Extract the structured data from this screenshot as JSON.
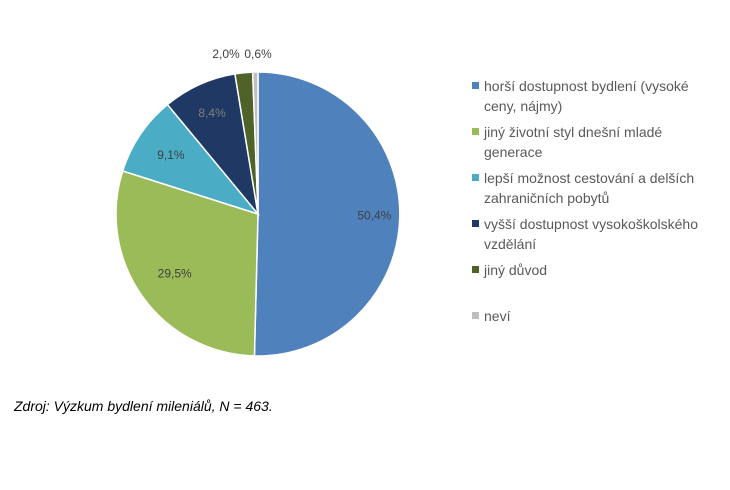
{
  "chart_data": {
    "type": "pie",
    "categories": [
      "horší dostupnost bydlení (vysoké ceny, nájmy)",
      "jiný životní styl dnešní mladé generace",
      "lepší možnost cestování a delších zahraničních pobytů",
      "vyšší dostupnost vysokoškolského vzdělání",
      "jiný důvod",
      "neví"
    ],
    "values": [
      50.4,
      29.5,
      9.1,
      8.4,
      2.0,
      0.6
    ],
    "data_labels": [
      "50,4%",
      "29,5%",
      "9,1%",
      "8,4%",
      "2,0%",
      "0,6%"
    ],
    "colors": [
      "#4f81bd",
      "#9bbb59",
      "#4bacc6",
      "#1f3864",
      "#4f6228",
      "#bfbfbf"
    ],
    "legend_position": "right",
    "start_angle": "12 o'clock, clockwise"
  },
  "caption": "Zdroj: Výzkum bydlení mileniálů, N = 463."
}
